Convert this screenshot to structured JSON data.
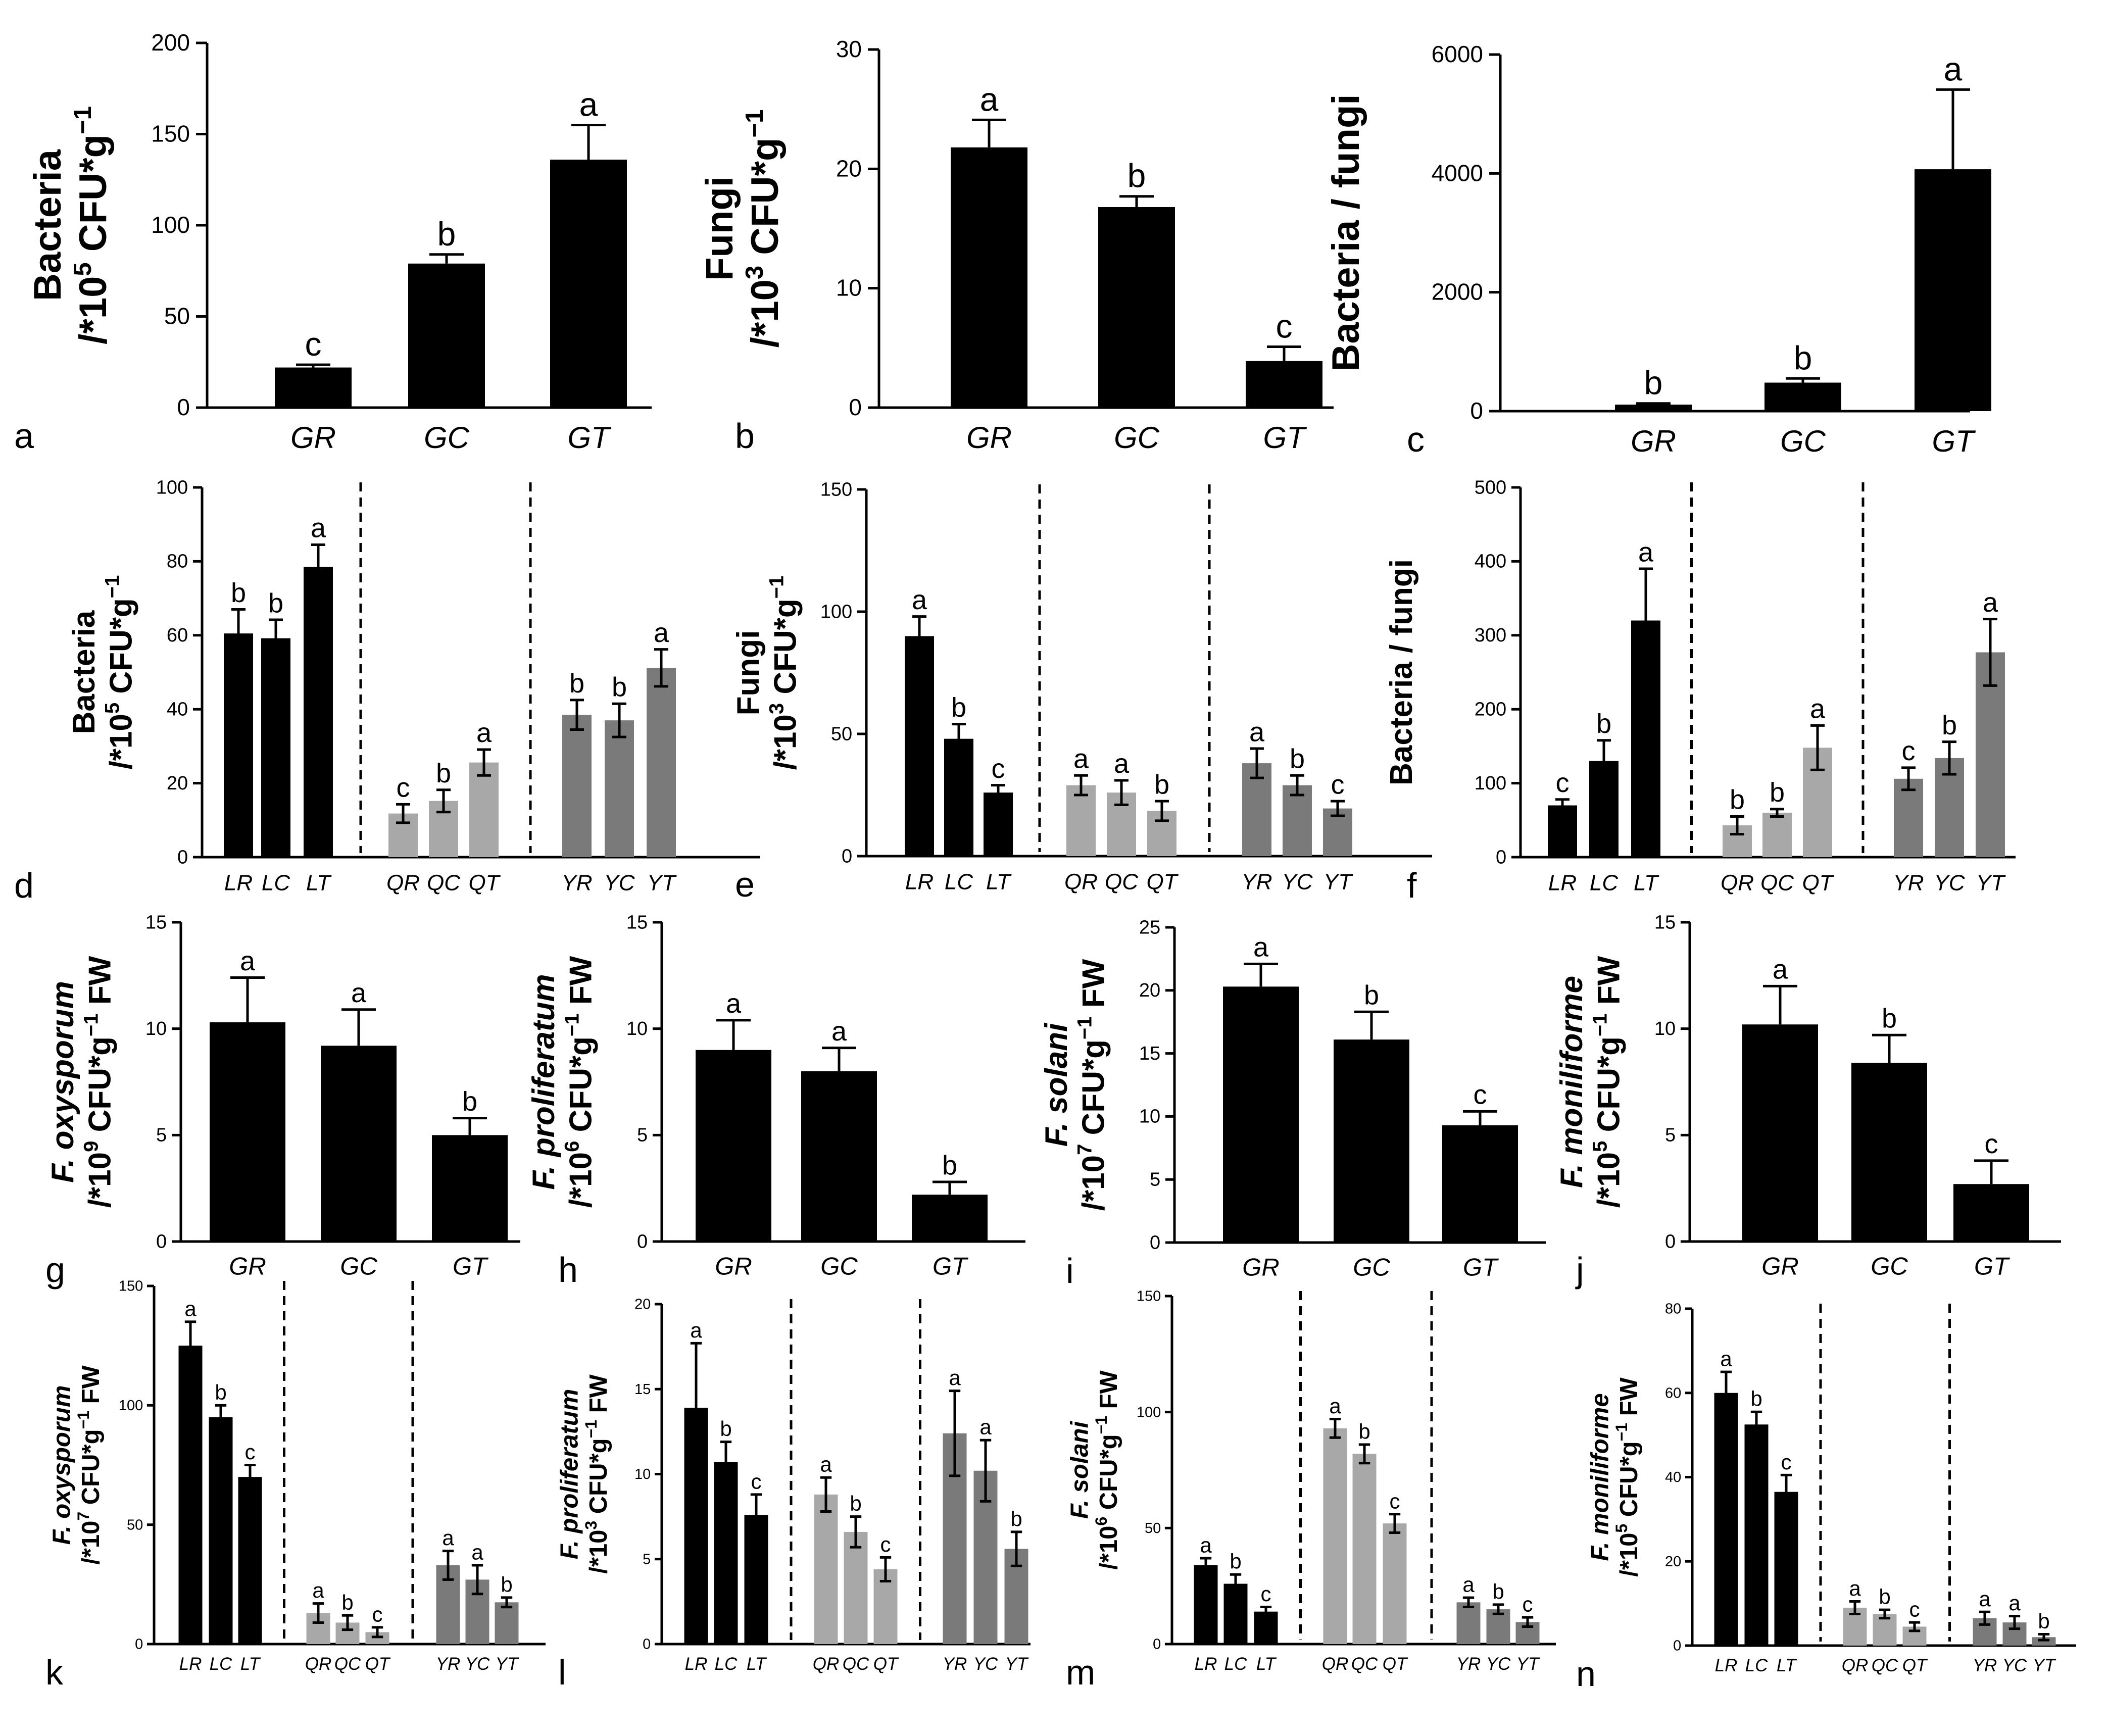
{
  "figure": {
    "title": ""
  },
  "chart_data": [
    {
      "id": "a",
      "type": "bar",
      "panel_letter": "a",
      "ylabel": [
        "Bacteria",
        "/*10",
        "5",
        " CFU*g",
        "−1",
        ""
      ],
      "yticks": [
        0,
        50,
        100,
        150,
        200
      ],
      "ylim": [
        0,
        200
      ],
      "categories": [
        "GR",
        "GC",
        "GT"
      ],
      "values": [
        22,
        79,
        136
      ],
      "errors": [
        1.5,
        5,
        19
      ],
      "letters": [
        "c",
        "b",
        "a"
      ],
      "colors": [
        "#000000",
        "#000000",
        "#000000"
      ],
      "groups": []
    },
    {
      "id": "b",
      "type": "bar",
      "panel_letter": "b",
      "ylabel": [
        "Fungi",
        "/*10",
        "3",
        " CFU*g",
        "−1",
        ""
      ],
      "yticks": [
        0,
        10,
        20,
        30
      ],
      "ylim": [
        0,
        30
      ],
      "categories": [
        "GR",
        "GC",
        "GT"
      ],
      "values": [
        21.8,
        16.8,
        3.9
      ],
      "errors": [
        2.3,
        0.9,
        1.2
      ],
      "letters": [
        "a",
        "b",
        "c"
      ],
      "colors": [
        "#000000",
        "#000000",
        "#000000"
      ],
      "groups": []
    },
    {
      "id": "c",
      "type": "bar",
      "panel_letter": "c",
      "ylabel": [
        "Bacteria / fungi",
        "",
        "",
        "",
        "",
        ""
      ],
      "yticks": [
        0,
        2000,
        4000,
        6000
      ],
      "ylim": [
        0,
        6000
      ],
      "categories": [
        "GR",
        "GC",
        "GT"
      ],
      "values": [
        110,
        480,
        4070
      ],
      "errors": [
        20,
        70,
        1340
      ],
      "letters": [
        "b",
        "b",
        "a"
      ],
      "colors": [
        "#000000",
        "#000000",
        "#000000"
      ],
      "groups": []
    },
    {
      "id": "d",
      "type": "bar",
      "panel_letter": "d",
      "ylabel": [
        "Bacteria",
        "/*10",
        "5",
        " CFU*g",
        "−1",
        ""
      ],
      "yticks": [
        0,
        20,
        40,
        60,
        80,
        100
      ],
      "ylim": [
        0,
        100
      ],
      "categories": [
        "LR",
        "LC",
        "LT",
        "QR",
        "QC",
        "QT",
        "YR",
        "YC",
        "YT"
      ],
      "values": [
        60.5,
        59.2,
        78.5,
        11.8,
        15.2,
        25.6,
        38.5,
        37.0,
        51.2
      ],
      "errors": [
        6.5,
        5.0,
        6.0,
        2.5,
        3.0,
        3.5,
        4.0,
        4.5,
        5.0
      ],
      "letters": [
        "b",
        "b",
        "a",
        "c",
        "b",
        "a",
        "b",
        "b",
        "a"
      ],
      "colors": [
        "#000000",
        "#000000",
        "#000000",
        "#a8a8a8",
        "#a8a8a8",
        "#a8a8a8",
        "#7a7a7a",
        "#7a7a7a",
        "#7a7a7a"
      ],
      "groups": [
        3,
        3,
        3
      ]
    },
    {
      "id": "e",
      "type": "bar",
      "panel_letter": "e",
      "ylabel": [
        "Fungi",
        "/*10",
        "3",
        " CFU*g",
        "−1",
        ""
      ],
      "yticks": [
        0,
        50,
        100,
        150
      ],
      "ylim": [
        0,
        150
      ],
      "categories": [
        "LR",
        "LC",
        "LT",
        "QR",
        "QC",
        "QT",
        "YR",
        "YC",
        "YT"
      ],
      "values": [
        90,
        48,
        26,
        29,
        26,
        18.5,
        38,
        29,
        19.5
      ],
      "errors": [
        8,
        6,
        3,
        4,
        5,
        4,
        6,
        4,
        3
      ],
      "letters": [
        "a",
        "b",
        "c",
        "a",
        "a",
        "b",
        "a",
        "b",
        "c"
      ],
      "colors": [
        "#000000",
        "#000000",
        "#000000",
        "#a8a8a8",
        "#a8a8a8",
        "#a8a8a8",
        "#7a7a7a",
        "#7a7a7a",
        "#7a7a7a"
      ],
      "groups": [
        3,
        3,
        3
      ]
    },
    {
      "id": "f",
      "type": "bar",
      "panel_letter": "f",
      "ylabel": [
        "Bacteria / fungi",
        "",
        "",
        "",
        "",
        ""
      ],
      "yticks": [
        0,
        100,
        200,
        300,
        400,
        500
      ],
      "ylim": [
        0,
        500
      ],
      "categories": [
        "LR",
        "LC",
        "LT",
        "QR",
        "QC",
        "QT",
        "YR",
        "YC",
        "YT"
      ],
      "values": [
        70,
        130,
        320,
        43,
        60,
        148,
        106,
        134,
        277
      ],
      "errors": [
        8,
        28,
        70,
        12,
        5,
        30,
        15,
        22,
        45
      ],
      "letters": [
        "c",
        "b",
        "a",
        "b",
        "b",
        "a",
        "c",
        "b",
        "a"
      ],
      "colors": [
        "#000000",
        "#000000",
        "#000000",
        "#a8a8a8",
        "#a8a8a8",
        "#a8a8a8",
        "#7a7a7a",
        "#7a7a7a",
        "#7a7a7a"
      ],
      "groups": [
        3,
        3,
        3
      ]
    },
    {
      "id": "g",
      "type": "bar",
      "panel_letter": "g",
      "ylabel": [
        "F. oxysporum",
        "/*10",
        "9",
        " CFU*g",
        "−1",
        " FW"
      ],
      "yticks": [
        0,
        5,
        10,
        15
      ],
      "ylim": [
        0,
        15
      ],
      "categories": [
        "GR",
        "GC",
        "GT"
      ],
      "values": [
        10.3,
        9.2,
        5.0
      ],
      "errors": [
        2.1,
        1.7,
        0.8
      ],
      "letters": [
        "a",
        "a",
        "b"
      ],
      "colors": [
        "#000000",
        "#000000",
        "#000000"
      ],
      "groups": []
    },
    {
      "id": "h",
      "type": "bar",
      "panel_letter": "h",
      "ylabel": [
        "F. proliferatum",
        "/*10",
        "6",
        " CFU*g",
        "−1",
        " FW"
      ],
      "yticks": [
        0,
        5,
        10,
        15
      ],
      "ylim": [
        0,
        15
      ],
      "categories": [
        "GR",
        "GC",
        "GT"
      ],
      "values": [
        9.0,
        8.0,
        2.2
      ],
      "errors": [
        1.4,
        1.1,
        0.6
      ],
      "letters": [
        "a",
        "a",
        "b"
      ],
      "colors": [
        "#000000",
        "#000000",
        "#000000"
      ],
      "groups": []
    },
    {
      "id": "i",
      "type": "bar",
      "panel_letter": "i",
      "ylabel": [
        "F. solani",
        "/*10",
        "7",
        " CFU*g",
        "−1",
        " FW"
      ],
      "yticks": [
        0,
        5,
        10,
        15,
        20,
        25
      ],
      "ylim": [
        0,
        25
      ],
      "categories": [
        "GR",
        "GC",
        "GT"
      ],
      "values": [
        20.3,
        16.1,
        9.3
      ],
      "errors": [
        1.8,
        2.2,
        1.1
      ],
      "letters": [
        "a",
        "b",
        "c"
      ],
      "colors": [
        "#000000",
        "#000000",
        "#000000"
      ],
      "groups": []
    },
    {
      "id": "j",
      "type": "bar",
      "panel_letter": "j",
      "ylabel": [
        "F. moniliforme",
        "/*10",
        "5",
        " CFU*g",
        "−1",
        " FW"
      ],
      "yticks": [
        0,
        5,
        10,
        15
      ],
      "ylim": [
        0,
        15
      ],
      "categories": [
        "GR",
        "GC",
        "GT"
      ],
      "values": [
        10.2,
        8.4,
        2.7
      ],
      "errors": [
        1.8,
        1.3,
        1.1
      ],
      "letters": [
        "a",
        "b",
        "c"
      ],
      "colors": [
        "#000000",
        "#000000",
        "#000000"
      ],
      "groups": []
    },
    {
      "id": "k",
      "type": "bar",
      "panel_letter": "k",
      "ylabel": [
        "F. oxysporum",
        "/*10",
        "7",
        " CFU*g",
        "−1",
        " FW"
      ],
      "yticks": [
        0,
        50,
        100,
        150
      ],
      "ylim": [
        0,
        150
      ],
      "categories": [
        "LR",
        "LC",
        "LT",
        "QR",
        "QC",
        "QT",
        "YR",
        "YC",
        "YT"
      ],
      "values": [
        125,
        95,
        70,
        13,
        9,
        5,
        33,
        27,
        17.5
      ],
      "errors": [
        10,
        5,
        5,
        4,
        3,
        2,
        6,
        6,
        2
      ],
      "letters": [
        "a",
        "b",
        "c",
        "a",
        "b",
        "c",
        "a",
        "a",
        "b"
      ],
      "colors": [
        "#000000",
        "#000000",
        "#000000",
        "#a8a8a8",
        "#a8a8a8",
        "#a8a8a8",
        "#7a7a7a",
        "#7a7a7a",
        "#7a7a7a"
      ],
      "groups": [
        3,
        3,
        3
      ]
    },
    {
      "id": "l",
      "type": "bar",
      "panel_letter": "l",
      "ylabel": [
        "F. proliferatum",
        "/*10",
        "3",
        " CFU*g",
        "−1",
        " FW"
      ],
      "yticks": [
        0,
        5,
        10,
        15,
        20
      ],
      "ylim": [
        0,
        20
      ],
      "categories": [
        "LR",
        "LC",
        "LT",
        "QR",
        "QC",
        "QT",
        "YR",
        "YC",
        "YT"
      ],
      "values": [
        13.9,
        10.7,
        7.6,
        8.8,
        6.6,
        4.4,
        12.4,
        10.2,
        5.6
      ],
      "errors": [
        3.8,
        1.2,
        1.2,
        1.0,
        0.9,
        0.7,
        2.5,
        1.8,
        1.0
      ],
      "letters": [
        "a",
        "b",
        "c",
        "a",
        "b",
        "c",
        "a",
        "a",
        "b"
      ],
      "colors": [
        "#000000",
        "#000000",
        "#000000",
        "#a8a8a8",
        "#a8a8a8",
        "#a8a8a8",
        "#7a7a7a",
        "#7a7a7a",
        "#7a7a7a"
      ],
      "groups": [
        3,
        3,
        3
      ]
    },
    {
      "id": "m",
      "type": "bar",
      "panel_letter": "m",
      "ylabel": [
        "F. solani",
        "/*10",
        "6",
        " CFU*g",
        "−1",
        " FW"
      ],
      "yticks": [
        0,
        50,
        100,
        150
      ],
      "ylim": [
        0,
        150
      ],
      "categories": [
        "LR",
        "LC",
        "LT",
        "QR",
        "QC",
        "QT",
        "YR",
        "YC",
        "YT"
      ],
      "values": [
        34,
        26,
        14,
        93,
        82,
        52,
        18,
        15,
        9.5
      ],
      "errors": [
        3,
        4,
        2,
        4,
        4,
        4,
        2,
        2,
        2
      ],
      "letters": [
        "a",
        "b",
        "c",
        "a",
        "b",
        "c",
        "a",
        "b",
        "c"
      ],
      "colors": [
        "#000000",
        "#000000",
        "#000000",
        "#a8a8a8",
        "#a8a8a8",
        "#a8a8a8",
        "#7a7a7a",
        "#7a7a7a",
        "#7a7a7a"
      ],
      "groups": [
        3,
        3,
        3
      ]
    },
    {
      "id": "n",
      "type": "bar",
      "panel_letter": "n",
      "ylabel": [
        "F. moniliforme",
        "/*10",
        "5",
        " CFU*g",
        "−1",
        " FW"
      ],
      "yticks": [
        0,
        20,
        40,
        60,
        80
      ],
      "ylim": [
        0,
        80
      ],
      "categories": [
        "LR",
        "LC",
        "LT",
        "QR",
        "QC",
        "QT",
        "YR",
        "YC",
        "YT"
      ],
      "values": [
        60,
        52.5,
        36.5,
        9,
        7.5,
        4.5,
        6.5,
        5.5,
        2
      ],
      "errors": [
        5,
        3,
        4,
        1.5,
        1,
        1,
        1.5,
        1.5,
        0.7
      ],
      "letters": [
        "a",
        "b",
        "c",
        "a",
        "b",
        "c",
        "a",
        "a",
        "b"
      ],
      "colors": [
        "#000000",
        "#000000",
        "#000000",
        "#a8a8a8",
        "#a8a8a8",
        "#a8a8a8",
        "#7a7a7a",
        "#7a7a7a",
        "#7a7a7a"
      ],
      "groups": [
        3,
        3,
        3
      ]
    }
  ]
}
